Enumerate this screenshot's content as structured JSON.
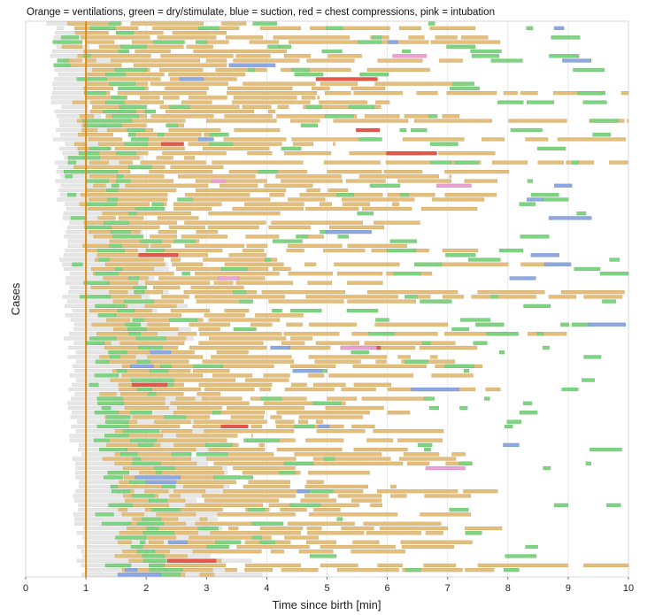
{
  "chart_data": {
    "type": "timeline",
    "title": "Orange = ventilations, green = dry/stimulate, blue = suction, red = chest compressions, pink = intubation",
    "xlabel": "Time since birth [min]",
    "ylabel": "Cases",
    "xlim": [
      0,
      10
    ],
    "xticks": [
      "0",
      "1",
      "2",
      "3",
      "4",
      "5",
      "6",
      "7",
      "8",
      "9",
      "10"
    ],
    "reference_line_x": 1,
    "grid": "vertical",
    "colors": {
      "ventilations": "#e4bf7c",
      "dry_stimulate": "#7fd483",
      "suction": "#8ea8e2",
      "chest_compressions": "#e4574a",
      "intubation": "#eaa2d4",
      "baseline": "#e6e6e6",
      "reference_line": "#e08a10"
    },
    "n_cases": 120,
    "seed": 7
  }
}
